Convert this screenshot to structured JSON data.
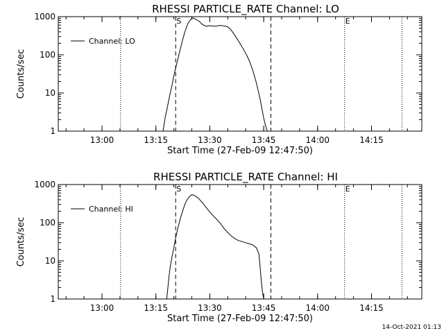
{
  "chart_data": [
    {
      "type": "line",
      "title": "RHESSI PARTICLE_RATE Channel: LO",
      "xlabel": "Start Time (27-Feb-09 12:47:50)",
      "ylabel": "Counts/sec",
      "y_scale": "log",
      "ylim": [
        1,
        1000
      ],
      "xlim": [
        "12:47:50",
        "14:29:00"
      ],
      "x_ticks": [
        "13:00",
        "13:15",
        "13:30",
        "13:45",
        "14:00",
        "14:15"
      ],
      "y_ticks": [
        "1",
        "10",
        "100",
        "1000"
      ],
      "legend": {
        "position": "top-left",
        "entries": [
          "Channel: LO"
        ]
      },
      "markers": {
        "start_label": "S",
        "end_label": "E"
      },
      "series": [
        {
          "name": "Channel: LO",
          "x": [
            "13:17:00",
            "13:17:20",
            "13:17:40",
            "13:18:00",
            "13:18:20",
            "13:18:40",
            "13:19:00",
            "13:19:30",
            "13:20:00",
            "13:20:30",
            "13:21:00",
            "13:21:30",
            "13:22:00",
            "13:22:30",
            "13:23:00",
            "13:23:30",
            "13:24:00",
            "13:24:30",
            "13:25:00",
            "13:25:30",
            "13:26:00",
            "13:27:00",
            "13:28:00",
            "13:29:00",
            "13:30:00",
            "13:31:00",
            "13:32:00",
            "13:33:00",
            "13:34:00",
            "13:35:00",
            "13:36:00",
            "13:37:00",
            "13:38:00",
            "13:39:00",
            "13:40:00",
            "13:41:00",
            "13:42:00",
            "13:43:00",
            "13:44:00",
            "13:45:00",
            "13:45:30",
            "13:45:50",
            "13:46:00"
          ],
          "y": [
            1.0,
            1.6,
            2.5,
            3.5,
            5,
            7,
            10,
            16,
            28,
            45,
            70,
            110,
            170,
            260,
            380,
            520,
            680,
            800,
            900,
            920,
            860,
            760,
            620,
            560,
            580,
            560,
            570,
            590,
            570,
            540,
            440,
            320,
            230,
            160,
            110,
            70,
            38,
            18,
            7,
            2.2,
            1.4,
            1.1,
            1.0
          ]
        }
      ]
    },
    {
      "type": "line",
      "title": "RHESSI PARTICLE_RATE Channel: HI",
      "xlabel": "Start Time (27-Feb-09 12:47:50)",
      "ylabel": "Counts/sec",
      "y_scale": "log",
      "ylim": [
        1,
        1000
      ],
      "xlim": [
        "12:47:50",
        "14:29:00"
      ],
      "x_ticks": [
        "13:00",
        "13:15",
        "13:30",
        "13:45",
        "14:00",
        "14:15"
      ],
      "y_ticks": [
        "1",
        "10",
        "100",
        "1000"
      ],
      "legend": {
        "position": "top-left",
        "entries": [
          "Channel: HI"
        ]
      },
      "markers": {
        "start_label": "S",
        "end_label": "E"
      },
      "series": [
        {
          "name": "Channel: HI",
          "x": [
            "13:18:00",
            "13:18:20",
            "13:18:40",
            "13:19:00",
            "13:19:30",
            "13:20:00",
            "13:20:30",
            "13:21:00",
            "13:21:30",
            "13:22:00",
            "13:22:30",
            "13:23:00",
            "13:23:30",
            "13:24:00",
            "13:24:30",
            "13:25:00",
            "13:25:30",
            "13:26:00",
            "13:27:00",
            "13:28:00",
            "13:29:00",
            "13:30:00",
            "13:31:00",
            "13:32:00",
            "13:33:00",
            "13:34:00",
            "13:35:00",
            "13:36:00",
            "13:37:00",
            "13:38:00",
            "13:39:00",
            "13:40:00",
            "13:41:00",
            "13:42:00",
            "13:43:00",
            "13:43:40",
            "13:44:00",
            "13:44:20",
            "13:44:40",
            "13:45:00"
          ],
          "y": [
            1.0,
            2.0,
            4,
            7,
            13,
            22,
            40,
            65,
            100,
            150,
            210,
            290,
            370,
            440,
            500,
            540,
            530,
            500,
            420,
            330,
            250,
            190,
            150,
            120,
            95,
            70,
            55,
            45,
            38,
            34,
            32,
            30,
            28,
            26,
            22,
            15,
            7,
            3,
            1.5,
            1.0
          ]
        }
      ]
    }
  ],
  "timestamp": "14-Oct-2021 01:13"
}
